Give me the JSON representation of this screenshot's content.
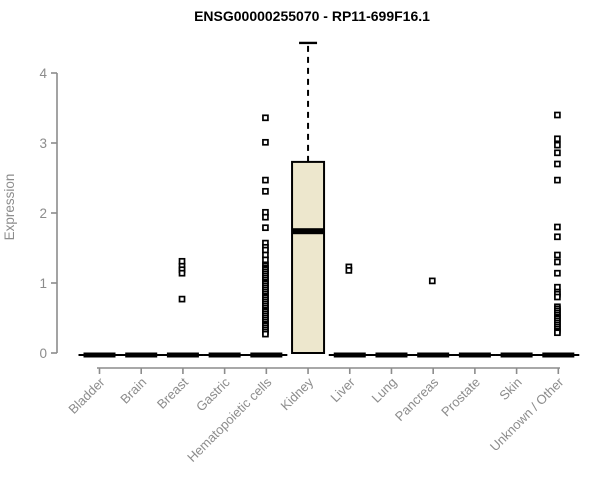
{
  "chart_data": {
    "type": "boxplot",
    "title": "ENSG00000255070 - RP11-699F16.1",
    "ylabel": "Expression",
    "xlabel": "",
    "ylim": [
      0,
      4.5
    ],
    "yticks": [
      0,
      1,
      2,
      3,
      4
    ],
    "grid": false,
    "legend": false,
    "categories": [
      "Bladder",
      "Brain",
      "Breast",
      "Gastric",
      "Hematopoietic cells",
      "Kidney",
      "Liver",
      "Lung",
      "Pancreas",
      "Prostate",
      "Skin",
      "Unknown / Other"
    ],
    "series": [
      {
        "category": "Bladder",
        "whisker_low": 0,
        "q1": 0,
        "median": 0,
        "q3": 0,
        "whisker_high": 0,
        "outliers": []
      },
      {
        "category": "Brain",
        "whisker_low": 0,
        "q1": 0,
        "median": 0,
        "q3": 0,
        "whisker_high": 0,
        "outliers": []
      },
      {
        "category": "Breast",
        "whisker_low": 0,
        "q1": 0,
        "median": 0,
        "q3": 0,
        "whisker_high": 0,
        "outliers": [
          1.31,
          1.24,
          1.19,
          1.14,
          0.77
        ]
      },
      {
        "category": "Gastric",
        "whisker_low": 0,
        "q1": 0,
        "median": 0,
        "q3": 0,
        "whisker_high": 0,
        "outliers": []
      },
      {
        "category": "Hematopoietic cells",
        "whisker_low": 0,
        "q1": 0,
        "median": 0,
        "q3": 0,
        "whisker_high": 0,
        "outliers": [
          3.36,
          3.01,
          2.47,
          2.31,
          2.01,
          1.94,
          1.79,
          1.57,
          1.51,
          1.47,
          1.4,
          1.33,
          1.26,
          1.24,
          1.21,
          1.19,
          1.16,
          1.13,
          1.1,
          1.07,
          1.04,
          1.01,
          0.99,
          0.96,
          0.93,
          0.9,
          0.87,
          0.84,
          0.81,
          0.79,
          0.76,
          0.73,
          0.7,
          0.67,
          0.64,
          0.61,
          0.59,
          0.56,
          0.53,
          0.5,
          0.47,
          0.44,
          0.41,
          0.39,
          0.36,
          0.33,
          0.3,
          0.27
        ]
      },
      {
        "category": "Kidney",
        "whisker_low": 0,
        "q1": 0,
        "median": 1.74,
        "q3": 2.73,
        "whisker_high": 4.43,
        "outliers": []
      },
      {
        "category": "Liver",
        "whisker_low": 0,
        "q1": 0,
        "median": 0,
        "q3": 0,
        "whisker_high": 0,
        "outliers": [
          1.23,
          1.18
        ]
      },
      {
        "category": "Lung",
        "whisker_low": 0,
        "q1": 0,
        "median": 0,
        "q3": 0,
        "whisker_high": 0,
        "outliers": []
      },
      {
        "category": "Pancreas",
        "whisker_low": 0,
        "q1": 0,
        "median": 0,
        "q3": 0,
        "whisker_high": 0,
        "outliers": [
          1.03
        ]
      },
      {
        "category": "Prostate",
        "whisker_low": 0,
        "q1": 0,
        "median": 0,
        "q3": 0,
        "whisker_high": 0,
        "outliers": []
      },
      {
        "category": "Skin",
        "whisker_low": 0,
        "q1": 0,
        "median": 0,
        "q3": 0,
        "whisker_high": 0,
        "outliers": []
      },
      {
        "category": "Unknown / Other",
        "whisker_low": 0,
        "q1": 0,
        "median": 0,
        "q3": 0,
        "whisker_high": 0,
        "outliers": [
          3.4,
          3.06,
          2.97,
          2.86,
          2.7,
          2.47,
          1.8,
          1.66,
          1.4,
          1.3,
          1.14,
          0.94,
          0.87,
          0.84,
          0.8,
          0.66,
          0.63,
          0.6,
          0.57,
          0.54,
          0.51,
          0.49,
          0.46,
          0.43,
          0.4,
          0.37,
          0.34,
          0.31,
          0.29
        ]
      }
    ],
    "styles": {
      "box_fill": "#EDE7CD",
      "box_stroke": "#000000",
      "median_color": "#000000",
      "outlier_fill": "#FFFFFF",
      "outlier_stroke": "#000000",
      "axis_color": "#8C8C8C",
      "title_color": "#000000",
      "background": "#FFFFFF"
    }
  }
}
